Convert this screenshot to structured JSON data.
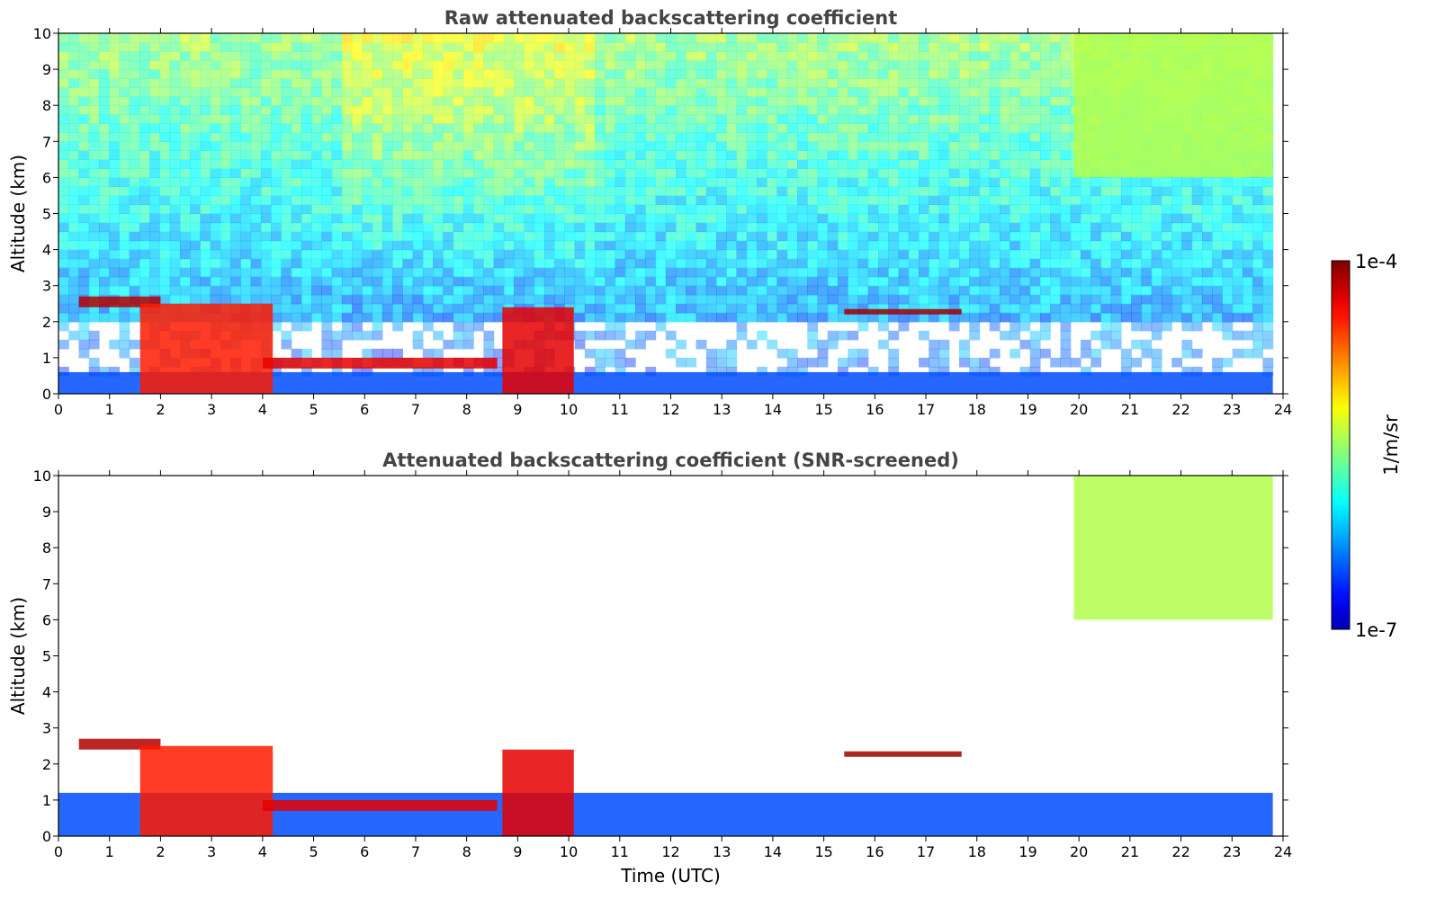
{
  "chart_data": [
    {
      "type": "heatmap",
      "title": "Raw attenuated backscattering coefficient",
      "xlabel": "",
      "ylabel": "Altitude (km)",
      "xlim": [
        0,
        24
      ],
      "ylim": [
        0,
        10
      ],
      "xticks": [
        0,
        1,
        2,
        3,
        4,
        5,
        6,
        7,
        8,
        9,
        10,
        11,
        12,
        13,
        14,
        15,
        16,
        17,
        18,
        19,
        20,
        21,
        22,
        23,
        24
      ],
      "yticks": [
        0,
        1,
        2,
        3,
        4,
        5,
        6,
        7,
        8,
        9,
        10
      ],
      "value_scale": "log",
      "value_range": [
        "1e-7",
        "1e-4"
      ],
      "data_end_hour": 23.8,
      "features": [
        {
          "name": "boundary layer",
          "x_range": [
            0,
            23.8
          ],
          "y_range": [
            0,
            0.6
          ],
          "level": 0.2
        },
        {
          "name": "cloud layer",
          "x_range": [
            0.4,
            2.0
          ],
          "y_range": [
            2.4,
            2.7
          ],
          "level": 0.95
        },
        {
          "name": "cloud",
          "x_range": [
            1.6,
            4.2
          ],
          "y_range": [
            0,
            2.5
          ],
          "level": 0.85
        },
        {
          "name": "cloud base",
          "x_range": [
            4.0,
            8.6
          ],
          "y_range": [
            0.7,
            1.0
          ],
          "level": 0.9
        },
        {
          "name": "cloud",
          "x_range": [
            8.7,
            10.1
          ],
          "y_range": [
            0,
            2.4
          ],
          "level": 0.9
        },
        {
          "name": "cloud layer",
          "x_range": [
            15.4,
            17.7
          ],
          "y_range": [
            2.2,
            2.35
          ],
          "level": 0.97
        },
        {
          "name": "cirrus",
          "x_range": [
            19.9,
            23.8
          ],
          "y_range": [
            6.0,
            10.0
          ],
          "level": 0.55
        }
      ]
    },
    {
      "type": "heatmap",
      "title": "Attenuated backscattering coefficient (SNR-screened)",
      "xlabel": "Time (UTC)",
      "ylabel": "Altitude (km)",
      "xlim": [
        0,
        24
      ],
      "ylim": [
        0,
        10
      ],
      "xticks": [
        0,
        1,
        2,
        3,
        4,
        5,
        6,
        7,
        8,
        9,
        10,
        11,
        12,
        13,
        14,
        15,
        16,
        17,
        18,
        19,
        20,
        21,
        22,
        23,
        24
      ],
      "yticks": [
        0,
        1,
        2,
        3,
        4,
        5,
        6,
        7,
        8,
        9,
        10
      ],
      "value_scale": "log",
      "value_range": [
        "1e-7",
        "1e-4"
      ],
      "screening": "SNR-screened",
      "data_end_hour": 23.8,
      "features": [
        {
          "name": "boundary layer",
          "x_range": [
            0,
            23.8
          ],
          "y_range": [
            0,
            1.2
          ],
          "level": 0.2
        },
        {
          "name": "cloud layer",
          "x_range": [
            0.4,
            2.0
          ],
          "y_range": [
            2.4,
            2.7
          ],
          "level": 0.95
        },
        {
          "name": "cloud",
          "x_range": [
            1.6,
            4.2
          ],
          "y_range": [
            0,
            2.5
          ],
          "level": 0.85
        },
        {
          "name": "cloud base",
          "x_range": [
            4.0,
            8.6
          ],
          "y_range": [
            0.7,
            1.0
          ],
          "level": 0.9
        },
        {
          "name": "cloud",
          "x_range": [
            8.7,
            10.1
          ],
          "y_range": [
            0,
            2.4
          ],
          "level": 0.9
        },
        {
          "name": "cloud layer",
          "x_range": [
            15.4,
            17.7
          ],
          "y_range": [
            2.2,
            2.35
          ],
          "level": 0.97
        },
        {
          "name": "cirrus",
          "x_range": [
            19.9,
            23.8
          ],
          "y_range": [
            6.0,
            10.0
          ],
          "level": 0.55
        }
      ]
    }
  ],
  "colorbar": {
    "label": "1/m/sr",
    "max_label": "1e-4",
    "min_label": "1e-7",
    "colormap": "jet",
    "scale": "log"
  },
  "colors": {
    "title_text": "#444444",
    "axis_text": "#000000",
    "background": "#ffffff"
  }
}
